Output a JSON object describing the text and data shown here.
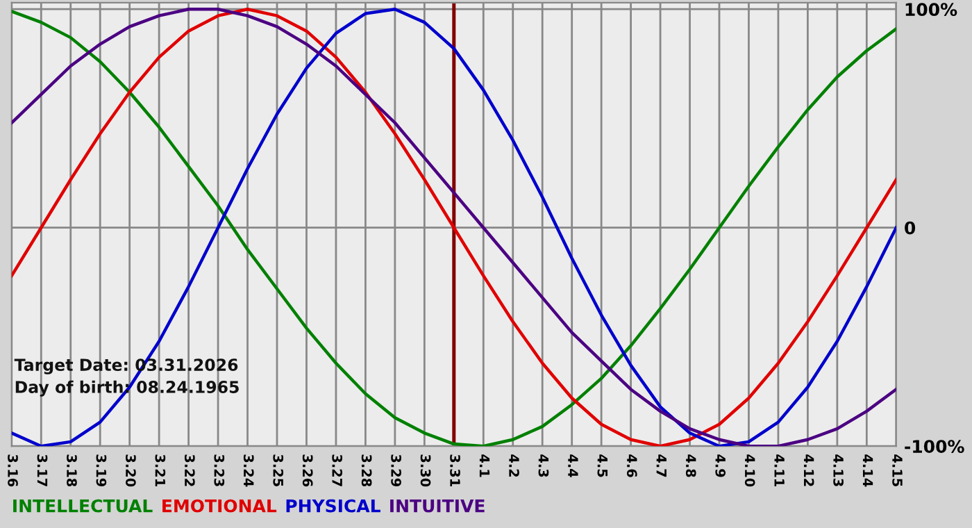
{
  "chart_data": {
    "type": "line",
    "categories": [
      "3.16",
      "3.17",
      "3.18",
      "3.19",
      "3.20",
      "3.21",
      "3.22",
      "3.23",
      "3.24",
      "3.25",
      "3.26",
      "3.27",
      "3.28",
      "3.29",
      "3.30",
      "3.31",
      "4.1",
      "4.2",
      "4.3",
      "4.4",
      "4.5",
      "4.6",
      "4.7",
      "4.8",
      "4.9",
      "4.10",
      "4.11",
      "4.12",
      "4.13",
      "4.14",
      "4.15"
    ],
    "series": [
      {
        "name": "INTELLECTUAL",
        "color": "#008000",
        "values": [
          99,
          94,
          87,
          76,
          62,
          46,
          28,
          10,
          -10,
          -28,
          -46,
          -62,
          -76,
          -87,
          -94,
          -99,
          -100,
          -97,
          -91,
          -81,
          -69,
          -54,
          -37,
          -19,
          0,
          19,
          37,
          54,
          69,
          81,
          91
        ]
      },
      {
        "name": "EMOTIONAL",
        "color": "#e00000",
        "values": [
          -22,
          0,
          22,
          43,
          62,
          78,
          90,
          97,
          100,
          97,
          90,
          78,
          62,
          43,
          22,
          0,
          -22,
          -43,
          -62,
          -78,
          -90,
          -97,
          -100,
          -97,
          -90,
          -78,
          -62,
          -43,
          -22,
          0,
          22
        ]
      },
      {
        "name": "PHYSICAL",
        "color": "#0000cc",
        "values": [
          -94,
          -100,
          -98,
          -89,
          -73,
          -52,
          -27,
          0,
          27,
          52,
          73,
          89,
          98,
          100,
          94,
          82,
          63,
          40,
          14,
          -14,
          -40,
          -63,
          -82,
          -94,
          -100,
          -98,
          -89,
          -73,
          -52,
          -27,
          0
        ]
      },
      {
        "name": "INTUITIVE",
        "color": "#4b0082",
        "values": [
          48,
          61,
          74,
          84,
          92,
          97,
          100,
          100,
          97,
          92,
          84,
          74,
          61,
          48,
          32,
          16,
          0,
          -16,
          -32,
          -48,
          -61,
          -74,
          -84,
          -92,
          -97,
          -100,
          -100,
          -97,
          -92,
          -84,
          -74
        ]
      }
    ],
    "ylim": [
      -100,
      103
    ],
    "yticks": [
      {
        "value": 100,
        "label": "100%"
      },
      0,
      {
        "value": -100,
        "label": "-100%"
      }
    ],
    "grid": true,
    "legend": "bottom",
    "ref_lines": [
      {
        "axis": "x",
        "value": "3.31",
        "color": "#800000"
      }
    ],
    "annotations": [
      "Target Date: 03.31.2026",
      "Day of birth: 08.24.1965"
    ]
  }
}
